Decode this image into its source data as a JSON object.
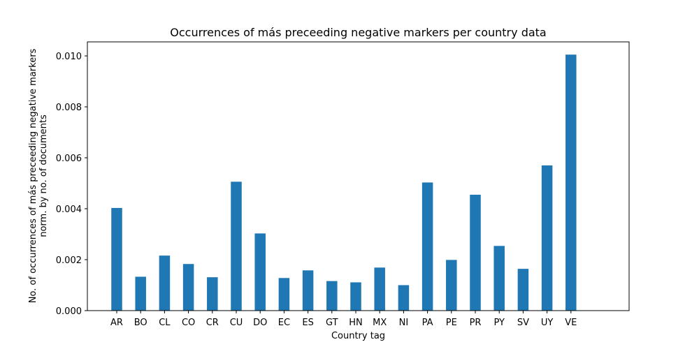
{
  "chart_data": {
    "type": "bar",
    "title": "Occurrences of más preceeding negative markers per country data",
    "xlabel": "Country tag",
    "ylabel_lines": [
      "No. of occurrences of más preceeding negative markers",
      "norm. by no. of documents"
    ],
    "categories": [
      "AR",
      "BO",
      "CL",
      "CO",
      "CR",
      "CU",
      "DO",
      "EC",
      "ES",
      "GT",
      "HN",
      "MX",
      "NI",
      "PA",
      "PE",
      "PR",
      "PY",
      "SV",
      "UY",
      "VE"
    ],
    "values": [
      0.00403,
      0.00133,
      0.00216,
      0.00183,
      0.00131,
      0.00506,
      0.00303,
      0.00128,
      0.00158,
      0.00116,
      0.00111,
      0.00169,
      0.001,
      0.00503,
      0.00199,
      0.00455,
      0.00254,
      0.00164,
      0.0057,
      0.01005
    ],
    "ylim": [
      0,
      0.01055
    ],
    "yticks": [
      0.0,
      0.002,
      0.004,
      0.006,
      0.008,
      0.01
    ],
    "ytick_labels": [
      "0.000",
      "0.002",
      "0.004",
      "0.006",
      "0.008",
      "0.010"
    ],
    "bar_color": "#1f77b4",
    "grid": false,
    "legend": "none"
  }
}
